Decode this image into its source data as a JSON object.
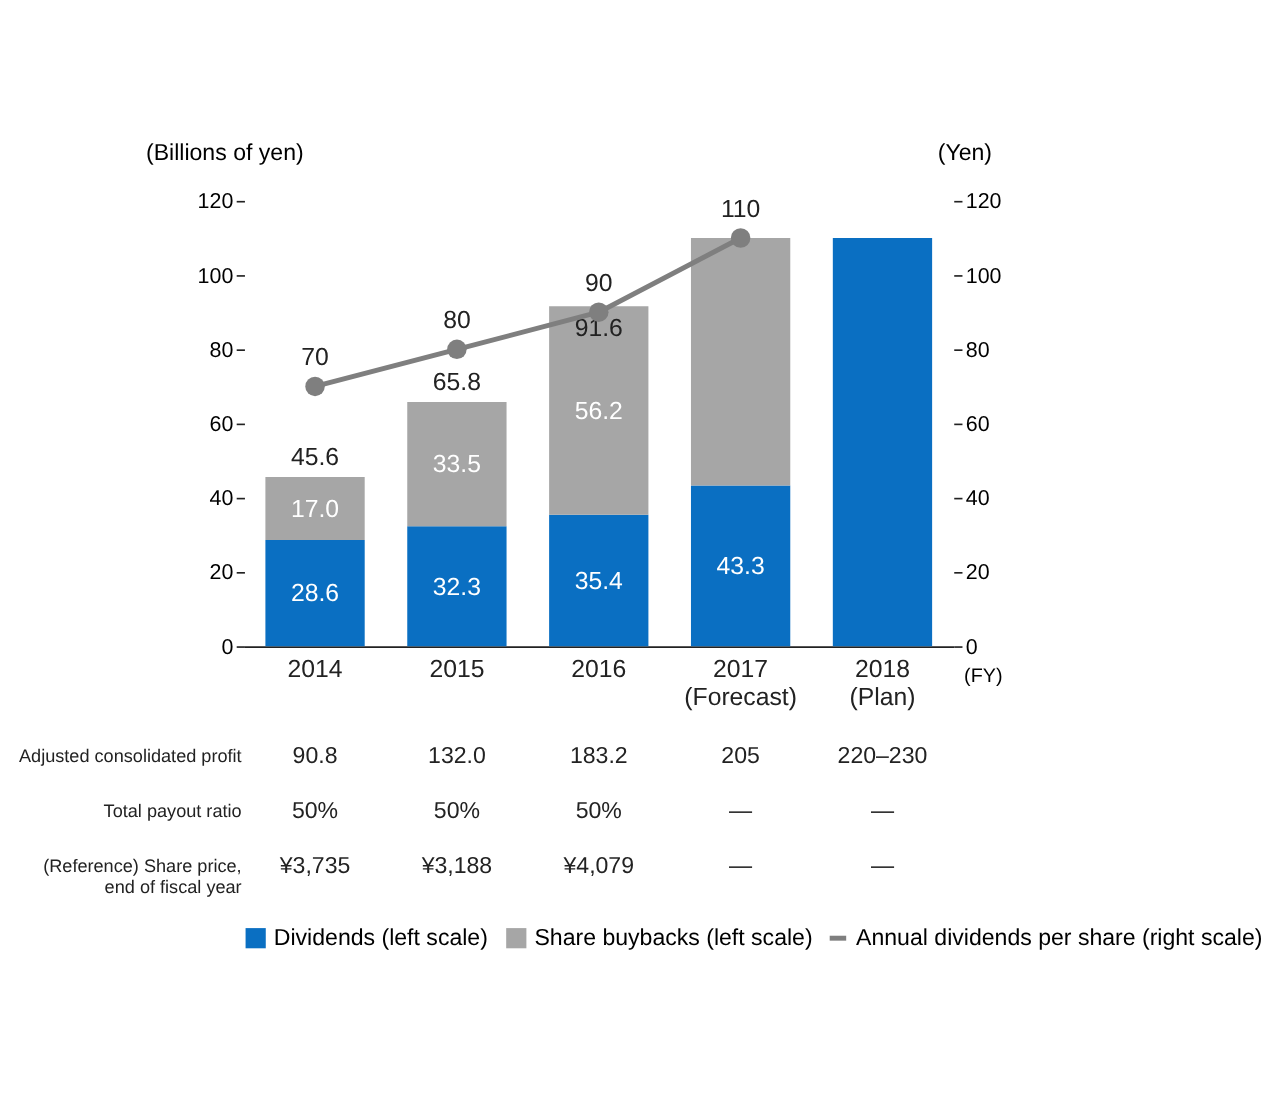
{
  "chart_data": {
    "type": "bar",
    "stacked": true,
    "ylabel": "(Billions of yen)",
    "y2label": "(Yen)",
    "xlabel": "(FY)",
    "categories": [
      "2014",
      "2015",
      "2016",
      "2017\n(Forecast)",
      "2018\n(Plan)"
    ],
    "ylim": [
      0,
      120
    ],
    "yticks": [
      0,
      20,
      40,
      60,
      80,
      100,
      120
    ],
    "y2lim": [
      0,
      120
    ],
    "y2ticks": [
      0,
      20,
      40,
      60,
      80,
      100,
      120
    ],
    "grid": false,
    "legend": "bottom",
    "marker": "circle",
    "series": [
      {
        "name": "Dividends (left scale)",
        "color": "#0a6fc2",
        "values": [
          28.6,
          32.3,
          35.4,
          43.3,
          110
        ],
        "value_labels": [
          "28.6",
          "32.3",
          "35.4",
          "43.3",
          null
        ]
      },
      {
        "name": "Share buybacks (left scale)",
        "color": "#a6a6a6",
        "values": [
          17.0,
          33.5,
          56.2,
          66.7,
          null
        ],
        "value_labels": [
          "17.0",
          "33.5",
          "56.2",
          null,
          null
        ]
      },
      {
        "name": "Annual dividends per share (right scale)",
        "type": "line",
        "axis": "y2",
        "color": "#7f7f7f",
        "values": [
          70,
          80,
          90,
          110,
          null
        ],
        "value_labels": [
          "70",
          "80",
          "90",
          "110",
          null
        ]
      }
    ],
    "totals": [
      "45.6",
      "65.8",
      "91.6",
      null,
      null
    ],
    "annotations": [
      "Adjusted consolidated profit",
      "90.8",
      "132.0",
      "183.2",
      "205",
      "220–230",
      "Total payout ratio",
      "50%",
      "50%",
      "50%",
      "—",
      "—",
      "(Reference) Share price,\nend of fiscal year",
      "¥3,735",
      "¥3,188",
      "¥4,079",
      "—",
      "—"
    ]
  }
}
